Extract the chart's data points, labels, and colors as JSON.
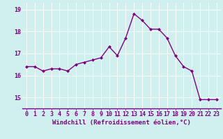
{
  "x": [
    0,
    1,
    2,
    3,
    4,
    5,
    6,
    7,
    8,
    9,
    10,
    11,
    12,
    13,
    14,
    15,
    16,
    17,
    18,
    19,
    20,
    21,
    22,
    23
  ],
  "y": [
    16.4,
    16.4,
    16.2,
    16.3,
    16.3,
    16.2,
    16.5,
    16.6,
    16.7,
    16.8,
    17.3,
    16.9,
    17.7,
    18.8,
    18.5,
    18.1,
    18.1,
    17.7,
    16.9,
    16.4,
    16.2,
    14.9,
    14.9,
    14.9
  ],
  "line_color": "#800080",
  "marker": "D",
  "marker_size": 2.0,
  "line_width": 1.0,
  "xlabel": "Windchill (Refroidissement éolien,°C)",
  "xlabel_fontsize": 6.5,
  "background_color": "#d0f0f0",
  "grid_color": "#ffffff",
  "tick_color": "#800080",
  "tick_fontsize": 6.0,
  "ylim": [
    14.5,
    19.3
  ],
  "xlim": [
    -0.5,
    23.5
  ],
  "yticks": [
    15,
    16,
    17,
    18,
    19
  ],
  "xticks": [
    0,
    1,
    2,
    3,
    4,
    5,
    6,
    7,
    8,
    9,
    10,
    11,
    12,
    13,
    14,
    15,
    16,
    17,
    18,
    19,
    20,
    21,
    22,
    23
  ]
}
